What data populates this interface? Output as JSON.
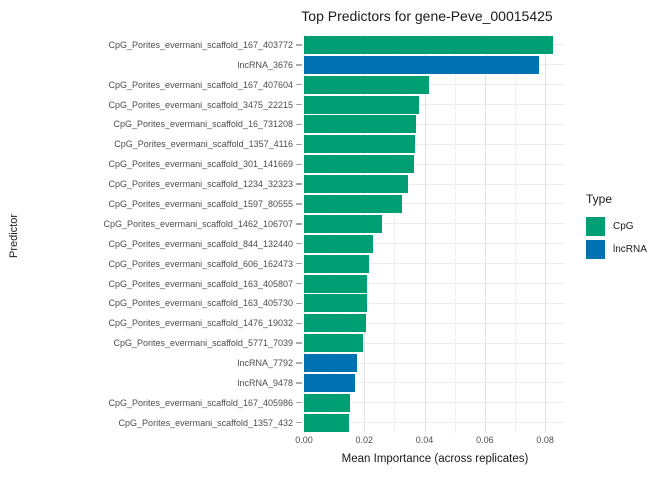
{
  "title": "Top Predictors for gene-Peve_00015425",
  "x_axis": {
    "label": "Mean Importance (across replicates)",
    "ticks": [
      "0.00",
      "0.02",
      "0.04",
      "0.06",
      "0.08"
    ],
    "tick_values": [
      0,
      0.02,
      0.04,
      0.06,
      0.08
    ]
  },
  "y_axis": {
    "label": "Predictor"
  },
  "legend": {
    "title": "Type",
    "entries": [
      {
        "label": "CpG",
        "color": "#009E73"
      },
      {
        "label": "lncRNA",
        "color": "#0072B2"
      }
    ]
  },
  "chart_data": {
    "type": "bar",
    "orientation": "horizontal",
    "title": "Top Predictors for gene-Peve_00015425",
    "xlabel": "Mean Importance (across replicates)",
    "ylabel": "Predictor",
    "xlim": [
      0,
      0.0866
    ],
    "grid": "on",
    "legend_position": "right",
    "categories": [
      "CpG_Porites_evermani_scaffold_167_403772",
      "lncRNA_3676",
      "CpG_Porites_evermani_scaffold_167_407604",
      "CpG_Porites_evermani_scaffold_3475_22215",
      "CpG_Porites_evermani_scaffold_16_731208",
      "CpG_Porites_evermani_scaffold_1357_4116",
      "CpG_Porites_evermani_scaffold_301_141669",
      "CpG_Porites_evermani_scaffold_1234_32323",
      "CpG_Porites_evermani_scaffold_1597_80555",
      "CpG_Porites_evermani_scaffold_1462_106707",
      "CpG_Porites_evermani_scaffold_844_132440",
      "CpG_Porites_evermani_scaffold_606_162473",
      "CpG_Porites_evermani_scaffold_163_405807",
      "CpG_Porites_evermani_scaffold_163_405730",
      "CpG_Porites_evermani_scaffold_1476_19032",
      "CpG_Porites_evermani_scaffold_5771_7039",
      "lncRNA_7792",
      "lncRNA_9478",
      "CpG_Porites_evermani_scaffold_167_405986",
      "CpG_Porites_evermani_scaffold_1357_432"
    ],
    "values": [
      0.0825,
      0.078,
      0.0415,
      0.0381,
      0.0371,
      0.0367,
      0.0364,
      0.0345,
      0.0324,
      0.0259,
      0.0229,
      0.0215,
      0.021,
      0.021,
      0.0207,
      0.0195,
      0.0175,
      0.0168,
      0.0152,
      0.0148
    ],
    "types": [
      "CpG",
      "lncRNA",
      "CpG",
      "CpG",
      "CpG",
      "CpG",
      "CpG",
      "CpG",
      "CpG",
      "CpG",
      "CpG",
      "CpG",
      "CpG",
      "CpG",
      "CpG",
      "CpG",
      "lncRNA",
      "lncRNA",
      "CpG",
      "CpG"
    ],
    "type_colors": {
      "CpG": "#009E73",
      "lncRNA": "#0072B2"
    }
  },
  "colors": {
    "background": "#ffffff",
    "grid_major": "#e2e2e2",
    "grid_minor": "#f1f1f1",
    "grid_row": "#ededed",
    "axis_text": "#4d4d4d",
    "title_text": "#1a1a1a"
  }
}
